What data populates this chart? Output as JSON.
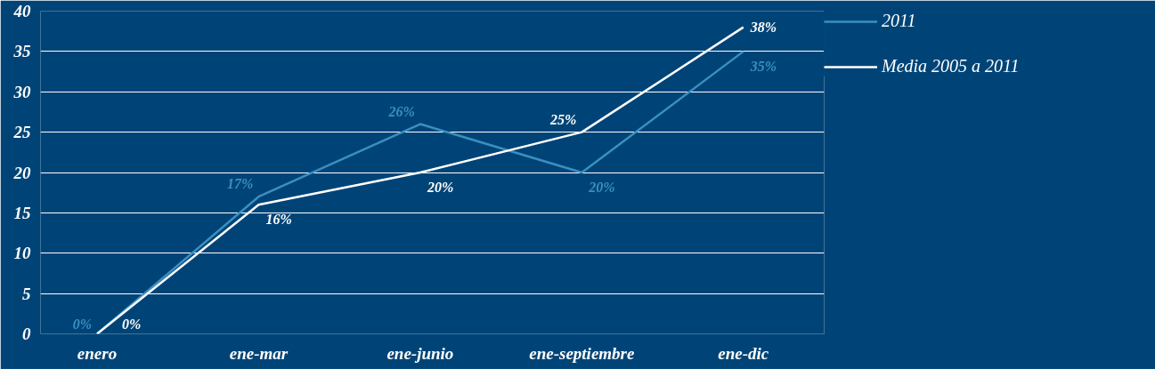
{
  "chart_data": {
    "type": "line",
    "categories": [
      "enero",
      "ene-mar",
      "ene-junio",
      "ene-septiembre",
      "ene-dic"
    ],
    "series": [
      {
        "name": "2011",
        "color": "#3a8fc0",
        "values": [
          0,
          17,
          26,
          20,
          35
        ],
        "value_labels": [
          "0%",
          "17%",
          "26%",
          "20%",
          "35%"
        ]
      },
      {
        "name": "Media 2005 a 2011",
        "color": "#ffffff",
        "values": [
          0,
          16,
          20,
          25,
          38
        ],
        "value_labels": [
          "0%",
          "16%",
          "20%",
          "25%",
          "38%"
        ]
      }
    ],
    "ylim": [
      0,
      40
    ],
    "yticks": [
      0,
      5,
      10,
      15,
      20,
      25,
      30,
      35,
      40
    ],
    "grid": "y",
    "legend": "top right",
    "marker": "none",
    "line_style": "solid"
  }
}
